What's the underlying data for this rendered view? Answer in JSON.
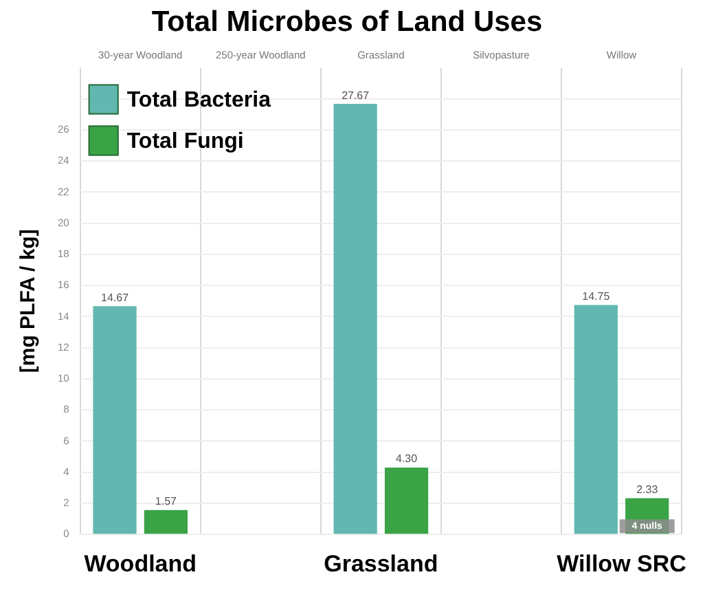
{
  "chart_data": {
    "type": "bar",
    "title": "Total Microbes of Land Uses",
    "ylabel": "[mg PLFA / kg]",
    "categories": [
      "Woodland",
      null,
      "Grassland",
      null,
      "Willow SRC"
    ],
    "series": [
      {
        "name": "Total Bacteria",
        "color": "#62b8b0",
        "values": [
          14.67,
          null,
          27.67,
          null,
          14.75
        ],
        "value_labels": [
          "14.67",
          null,
          "27.67",
          null,
          "14.75"
        ]
      },
      {
        "name": "Total Fungi",
        "color": "#3aa346",
        "values": [
          1.57,
          null,
          4.3,
          null,
          2.33
        ],
        "value_labels": [
          "1.57",
          null,
          "4.30",
          null,
          "2.33"
        ]
      }
    ],
    "ylim": [
      0,
      30
    ],
    "yticks": [
      0,
      2,
      4,
      6,
      8,
      10,
      12,
      14,
      16,
      18,
      20,
      22,
      24,
      26,
      {
        "value": 28,
        "label": null
      }
    ],
    "grid": true,
    "legend": "top left",
    "annotations": [
      "30-year Woodland",
      "250-year Woodland",
      "Grassland",
      "Silvopasture",
      "Willow",
      {
        "text": "4 nulls",
        "x": "Willow SRC",
        "y": 0
      }
    ]
  }
}
